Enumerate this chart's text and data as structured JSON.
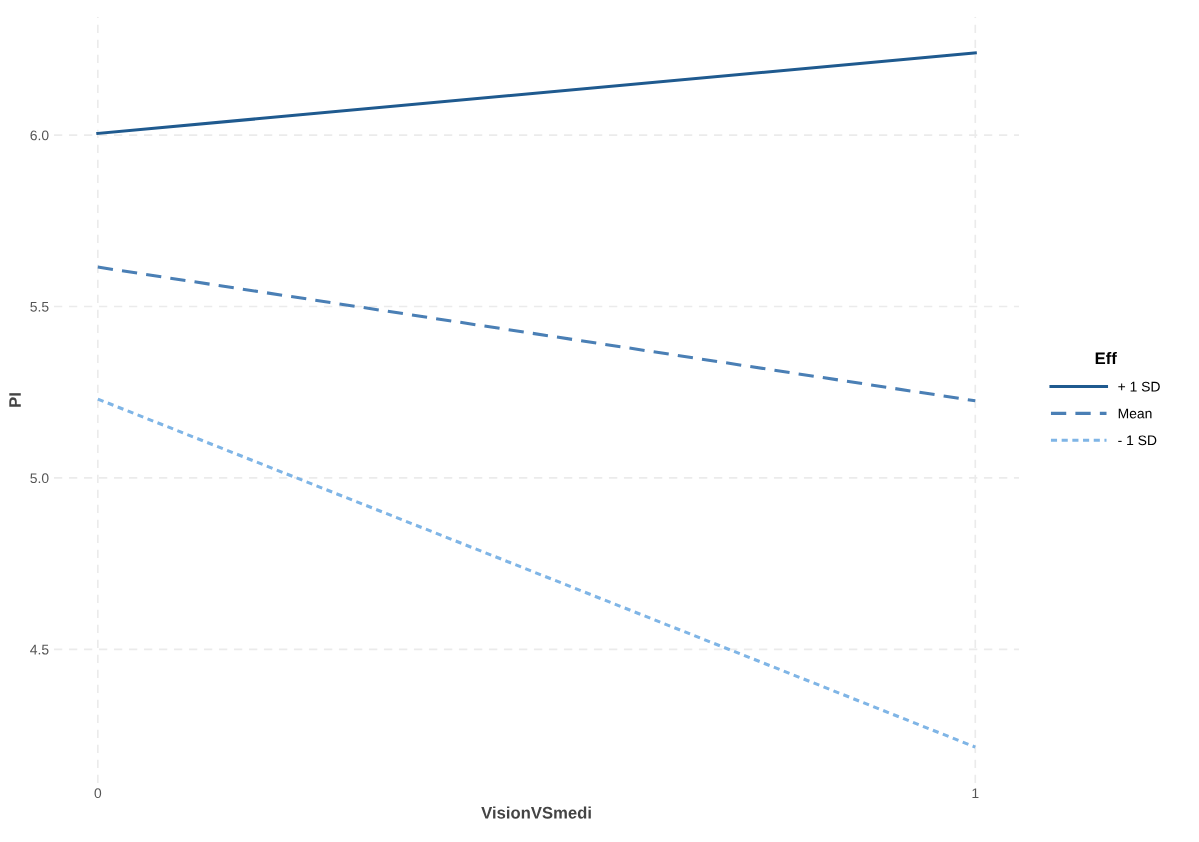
{
  "chart_data": {
    "type": "line",
    "xlabel": "VisionVSmedi",
    "ylabel": "PI",
    "legend_title": "Eff",
    "x": [
      0,
      1
    ],
    "series": [
      {
        "name": "+ 1 SD",
        "color": "#1f5a8f",
        "values": [
          6.005,
          6.24
        ],
        "line_style": "solid"
      },
      {
        "name": "Mean",
        "color": "#4a7fb5",
        "values": [
          5.615,
          5.225
        ],
        "line_style": "dashed"
      },
      {
        "name": "- 1 SD",
        "color": "#7fb5e6",
        "values": [
          5.23,
          4.215
        ],
        "line_style": "dotted"
      }
    ],
    "xlim": [
      -0.05,
      1.05
    ],
    "xticks": [
      0,
      1
    ],
    "ylim": [
      4.11,
      6.345
    ],
    "yticks": [
      {
        "value": 4.5,
        "label": "4.5"
      },
      {
        "value": 5.0,
        "label": "5.0"
      },
      {
        "value": 5.5,
        "label": "5.5"
      },
      {
        "value": 6.0,
        "label": "6.0"
      }
    ],
    "grid": true,
    "legend": "right",
    "marker": "none"
  }
}
